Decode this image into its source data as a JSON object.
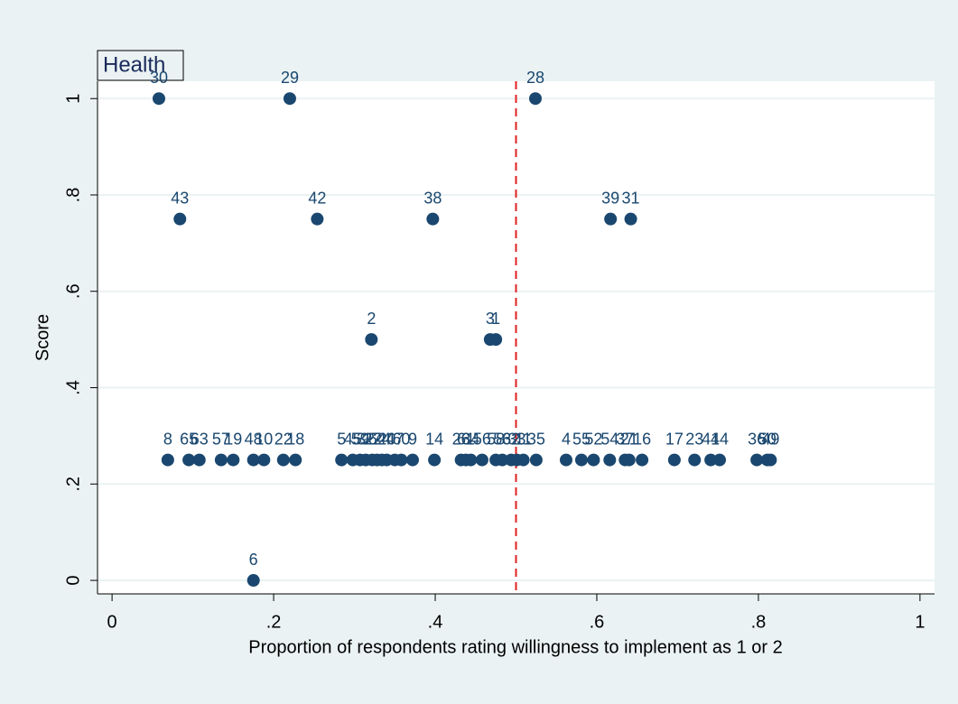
{
  "chart_data": {
    "type": "scatter",
    "title": "Health",
    "x_label": "Proportion of respondents rating willingness to implement as 1 or 2",
    "y_label": "Score",
    "x": [
      0.058,
      0.22,
      0.524,
      0.084,
      0.254,
      0.397,
      0.617,
      0.642,
      0.321,
      0.468,
      0.475,
      0.175,
      0.069,
      0.095,
      0.108,
      0.135,
      0.15,
      0.175,
      0.188,
      0.212,
      0.227,
      0.284,
      0.298,
      0.307,
      0.314,
      0.322,
      0.328,
      0.334,
      0.34,
      0.35,
      0.358,
      0.372,
      0.399,
      0.432,
      0.438,
      0.444,
      0.458,
      0.475,
      0.483,
      0.494,
      0.501,
      0.509,
      0.525,
      0.562,
      0.581,
      0.596,
      0.616,
      0.635,
      0.64,
      0.656,
      0.696,
      0.721,
      0.741,
      0.752,
      0.798,
      0.811,
      0.815
    ],
    "values": [
      1,
      1,
      1,
      0.75,
      0.75,
      0.75,
      0.75,
      0.75,
      0.5,
      0.5,
      0.5,
      0,
      0.25,
      0.25,
      0.25,
      0.25,
      0.25,
      0.25,
      0.25,
      0.25,
      0.25,
      0.25,
      0.25,
      0.25,
      0.25,
      0.25,
      0.25,
      0.25,
      0.25,
      0.25,
      0.25,
      0.25,
      0.25,
      0.25,
      0.25,
      0.25,
      0.25,
      0.25,
      0.25,
      0.25,
      0.25,
      0.25,
      0.25,
      0.25,
      0.25,
      0.25,
      0.25,
      0.25,
      0.25,
      0.25,
      0.25,
      0.25,
      0.25,
      0.25,
      0.25,
      0.25,
      0.25
    ],
    "point_labels": [
      "30",
      "29",
      "28",
      "43",
      "42",
      "38",
      "39",
      "31",
      "2",
      "3",
      "1",
      "6",
      "8",
      "65",
      "63",
      "57",
      "19",
      "48",
      "10",
      "22",
      "18",
      "5",
      "45",
      "59",
      "32",
      "27",
      "64",
      "24",
      "20",
      "47",
      "60",
      "9",
      "14",
      "26",
      "61",
      "34",
      "56",
      "58",
      "53",
      "62",
      "33",
      "11",
      "35",
      "4",
      "55",
      "52",
      "54",
      "37",
      "21",
      "16",
      "17",
      "23",
      "41",
      "44",
      "36",
      "50",
      "49"
    ],
    "color": "#1a476f",
    "label_color": "#1a476f",
    "xline": 0.5,
    "xline_color": "#e02020",
    "xlim": [
      -0.018,
      1.018
    ],
    "ylim": [
      -0.028,
      1.036
    ],
    "xticks": [
      0,
      {
        "value": 0.2,
        "label": ".2"
      },
      {
        "value": 0.4,
        "label": ".4"
      },
      {
        "value": 0.6,
        "label": ".6"
      },
      {
        "value": 0.8,
        "label": ".8"
      },
      1
    ],
    "yticks": [
      0,
      {
        "value": 0.2,
        "label": ".2"
      },
      {
        "value": 0.4,
        "label": ".4"
      },
      {
        "value": 0.6,
        "label": ".6"
      },
      {
        "value": 0.8,
        "label": ".8"
      },
      1
    ],
    "grid": true
  }
}
